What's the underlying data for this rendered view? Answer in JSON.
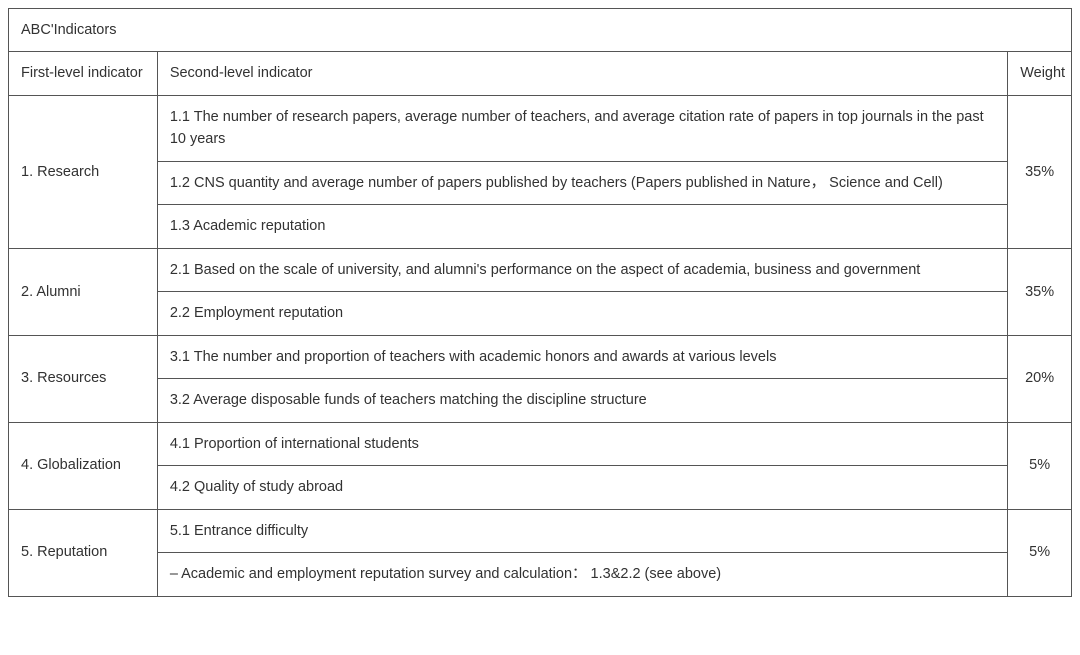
{
  "table": {
    "title": "ABC'Indicators",
    "columns": [
      "First-level indicator",
      "Second-level indicator",
      "Weight"
    ],
    "border_color": "#555555",
    "text_color": "#323232",
    "background_color": "#ffffff",
    "font_size_pt": 11,
    "groups": [
      {
        "first": "1. Research",
        "weight": "35%",
        "items": [
          "1.1  The number of research papers, average number of teachers, and average citation rate of papers in top journals in the past 10 years",
          "1.2  CNS quantity and average number of papers published by teachers (Papers published in Nature， Science and Cell)",
          "1.3  Academic reputation"
        ]
      },
      {
        "first": "2. Alumni",
        "weight": "35%",
        "items": [
          "2.1  Based on the scale of university, and alumni's performance on the aspect of academia, business and government",
          "2.2  Employment reputation"
        ]
      },
      {
        "first": "3. Resources",
        "weight": "20%",
        "items": [
          "3.1  The number and proportion of teachers with academic honors and awards at various levels",
          "3.2  Average disposable funds of teachers matching the discipline structure"
        ]
      },
      {
        "first": "4. Globalization",
        "weight": "5%",
        "items": [
          "4.1  Proportion of international students",
          "4.2  Quality of study abroad"
        ]
      },
      {
        "first": "5. Reputation",
        "weight": "5%",
        "items": [
          "5.1  Entrance difficulty",
          "–  Academic and employment reputation survey and calculation： 1.3&2.2 (see above)"
        ]
      }
    ]
  }
}
